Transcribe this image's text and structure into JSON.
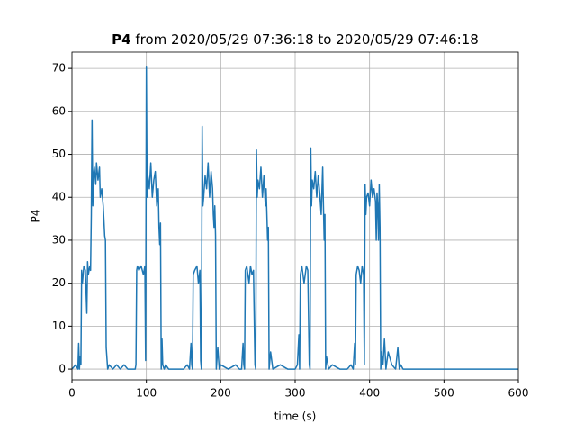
{
  "chart_data": {
    "type": "line",
    "title_bold": "P4",
    "title": "from 2020/05/29 07:36:18 to 2020/05/29 07:46:18",
    "xlabel": "time (s)",
    "ylabel": "P4",
    "xlim": [
      0,
      600
    ],
    "xticks": [
      0,
      100,
      200,
      300,
      400,
      500,
      600
    ],
    "ylim": [
      -2.5,
      73.8
    ],
    "yticks": [
      0,
      10,
      20,
      30,
      40,
      50,
      60,
      70
    ],
    "grid": true,
    "x": [
      0,
      5,
      8,
      9,
      10,
      11,
      12,
      13,
      14,
      16,
      18,
      20,
      21,
      22,
      24,
      25,
      26,
      27,
      28,
      29,
      30,
      32,
      33,
      35,
      37,
      38,
      40,
      42,
      44,
      45,
      46,
      48,
      50,
      55,
      60,
      65,
      70,
      75,
      80,
      85,
      86,
      87,
      88,
      90,
      93,
      96,
      98,
      99,
      100,
      101,
      102,
      104,
      106,
      108,
      110,
      112,
      114,
      116,
      117,
      118,
      119,
      120,
      121,
      122,
      124,
      126,
      130,
      140,
      150,
      155,
      158,
      160,
      161,
      162,
      163,
      165,
      168,
      170,
      172,
      173,
      174,
      175,
      176,
      177,
      179,
      181,
      183,
      185,
      187,
      189,
      190,
      191,
      192,
      193,
      194,
      196,
      198,
      200,
      210,
      220,
      225,
      228,
      230,
      231,
      232,
      233,
      235,
      238,
      240,
      242,
      244,
      246,
      247,
      248,
      249,
      250,
      252,
      254,
      256,
      258,
      260,
      261,
      262,
      263,
      264,
      265,
      267,
      270,
      280,
      290,
      300,
      303,
      305,
      306,
      307,
      309,
      312,
      315,
      317,
      319,
      320,
      321,
      322,
      323,
      325,
      327,
      329,
      331,
      333,
      335,
      337,
      338,
      339,
      340,
      341,
      342,
      345,
      350,
      360,
      370,
      375,
      378,
      380,
      381,
      382,
      384,
      386,
      388,
      390,
      392,
      393,
      394,
      395,
      396,
      398,
      400,
      402,
      404,
      406,
      408,
      409,
      410,
      411,
      412,
      413,
      414,
      415,
      416,
      418,
      420,
      422,
      425,
      430,
      435,
      438,
      440,
      442,
      445,
      450,
      500,
      550,
      600
    ],
    "series": [
      {
        "name": "P4",
        "color": "#1f77b4",
        "values": [
          0,
          1,
          0,
          6,
          0,
          3,
          1,
          23,
          20,
          24,
          23,
          13,
          25,
          22,
          24,
          23,
          36,
          58,
          38,
          45,
          47,
          43,
          48,
          44,
          47,
          40,
          42,
          38,
          31,
          30,
          5,
          0,
          1,
          0,
          1,
          0,
          1,
          0,
          0,
          0,
          1,
          23,
          24,
          23,
          24,
          22,
          24,
          2,
          70.5,
          40,
          45,
          42,
          48,
          40,
          44,
          46,
          38,
          42,
          33,
          29,
          34,
          0,
          7,
          1,
          0,
          1,
          0,
          0,
          0,
          1,
          0,
          6,
          1,
          0,
          22,
          23,
          24,
          20,
          23,
          2,
          0,
          56.5,
          38,
          40,
          45,
          42,
          48,
          40,
          46,
          42,
          36,
          33,
          38,
          31,
          0,
          5,
          0,
          1,
          0,
          1,
          0,
          0,
          6,
          1,
          0,
          23,
          24,
          20,
          24,
          22,
          23,
          1,
          0,
          51,
          40,
          44,
          42,
          47,
          40,
          45,
          38,
          42,
          36,
          30,
          33,
          0,
          4,
          0,
          1,
          0,
          0,
          1,
          8,
          0,
          22,
          24,
          20,
          24,
          23,
          1,
          0,
          51.5,
          38,
          44,
          42,
          46,
          40,
          45,
          41,
          36,
          47,
          38,
          30,
          36,
          0,
          3,
          0,
          1,
          0,
          0,
          1,
          0,
          6,
          1,
          22,
          24,
          23,
          20,
          24,
          22,
          1,
          43,
          36,
          40,
          41,
          38,
          44,
          40,
          42,
          39,
          30,
          41,
          38,
          30,
          43,
          33,
          0,
          4,
          1,
          7,
          0,
          4,
          1,
          0,
          5,
          0,
          1,
          0,
          0,
          0,
          0,
          0
        ]
      }
    ]
  }
}
